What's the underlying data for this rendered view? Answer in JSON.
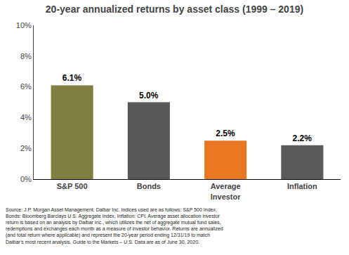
{
  "chart_data": {
    "type": "bar",
    "title": "20-year annualized returns by asset class (1999 – 2019)",
    "categories": [
      "S&P 500",
      "Bonds",
      "Average\nInvestor",
      "Inflation"
    ],
    "values": [
      6.1,
      5.0,
      2.5,
      2.2
    ],
    "value_labels": [
      "6.1%",
      "5.0%",
      "2.5%",
      "2.2%"
    ],
    "data_labels": true,
    "colors": [
      "#7f7f3f",
      "#595959",
      "#E87722",
      "#5a5a5a"
    ],
    "ylim": [
      0,
      10
    ],
    "yticks": [
      {
        "value": 0,
        "label": "0%"
      },
      {
        "value": 2,
        "label": "2%"
      },
      {
        "value": 4,
        "label": "4%"
      },
      {
        "value": 6,
        "label": "6%"
      },
      {
        "value": 8,
        "label": "8%"
      },
      {
        "value": 10,
        "label": "10%"
      }
    ],
    "grid": false,
    "annotations": [
      "Source: J.P. Morgan Asset Management; Dalbar Inc. Indices used are as follows: S&P 500 Index,",
      "Bonds: Bloomberg Barclays U.S. Aggregate Index, Inflation: CPI. Average asset allocation investor",
      "return is based on an analysis by Dalbar Inc., which utilizes the net of aggregate mutual fund sales,",
      "redemptions and exchanges each month as a measure of investor behavior. Returns are annualized",
      "(and total return where applicable) and represent the 20-year period ending 12/31/19 to match",
      "Dalbar’s most recent analysis. Guide to the Markets – U.S. Data are as of June 30, 2020."
    ]
  }
}
